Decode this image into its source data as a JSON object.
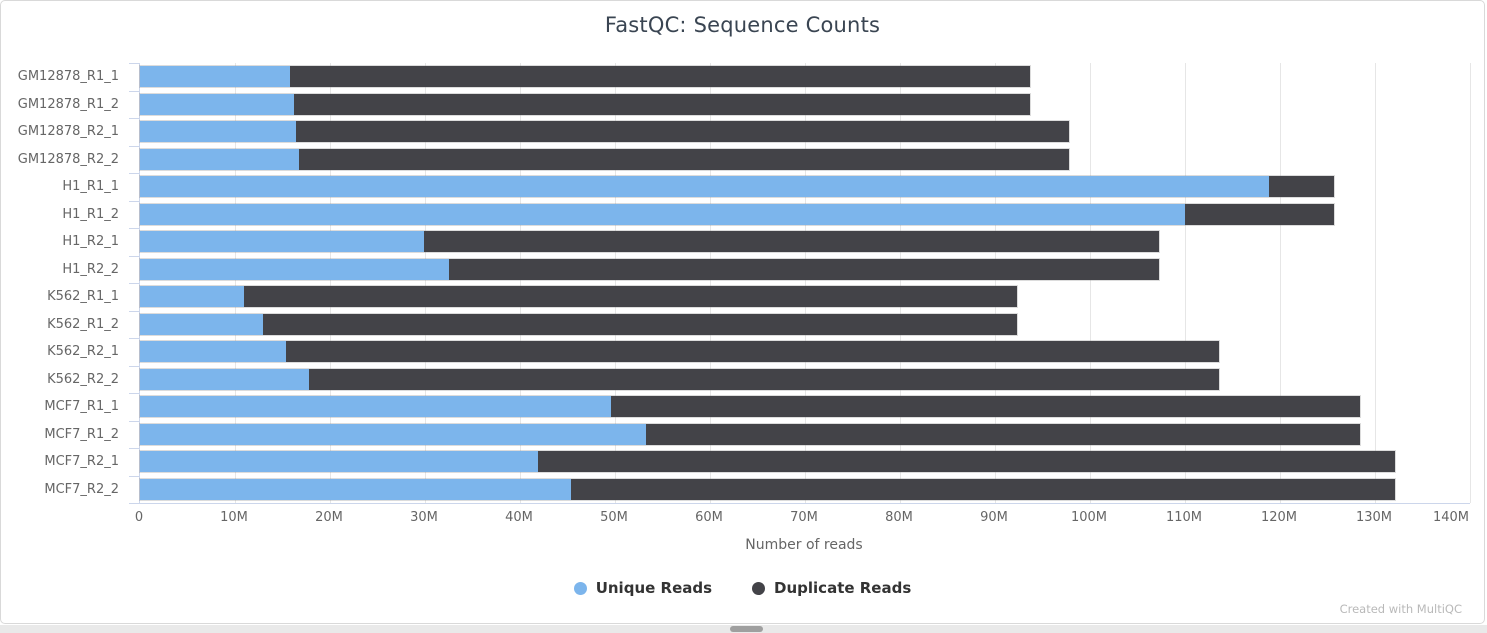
{
  "page": {
    "footer_credit": "Created with MultiQC"
  },
  "chart_data": {
    "type": "bar",
    "orientation": "horizontal",
    "stacked": true,
    "title": "FastQC: Sequence Counts",
    "xlabel": "Number of reads",
    "categories": [
      "GM12878_R1_1",
      "GM12878_R1_2",
      "GM12878_R2_1",
      "GM12878_R2_2",
      "H1_R1_1",
      "H1_R1_2",
      "H1_R2_1",
      "H1_R2_2",
      "K562_R1_1",
      "K562_R1_2",
      "K562_R2_1",
      "K562_R2_2",
      "MCF7_R1_1",
      "MCF7_R1_2",
      "MCF7_R2_1",
      "MCF7_R2_2"
    ],
    "series": [
      {
        "name": "Unique Reads",
        "color": "#7cb5ec",
        "values_millions": [
          15.8,
          16.2,
          16.4,
          16.7,
          118.8,
          110.0,
          29.9,
          32.5,
          10.9,
          12.9,
          15.4,
          17.8,
          49.6,
          53.3,
          41.9,
          45.4
        ]
      },
      {
        "name": "Duplicate Reads",
        "color": "#434348",
        "values_millions": [
          77.9,
          77.5,
          81.4,
          81.1,
          6.9,
          15.7,
          77.4,
          74.8,
          81.4,
          79.4,
          98.2,
          95.8,
          78.8,
          75.1,
          90.2,
          86.7
        ]
      }
    ],
    "xlim_millions": [
      0,
      140
    ],
    "xticks": [
      {
        "label": "0",
        "m": 0
      },
      {
        "label": "10M",
        "m": 10
      },
      {
        "label": "20M",
        "m": 20
      },
      {
        "label": "30M",
        "m": 30
      },
      {
        "label": "40M",
        "m": 40
      },
      {
        "label": "50M",
        "m": 50
      },
      {
        "label": "60M",
        "m": 60
      },
      {
        "label": "70M",
        "m": 70
      },
      {
        "label": "80M",
        "m": 80
      },
      {
        "label": "90M",
        "m": 90
      },
      {
        "label": "100M",
        "m": 100
      },
      {
        "label": "110M",
        "m": 110
      },
      {
        "label": "120M",
        "m": 120
      },
      {
        "label": "130M",
        "m": 130
      },
      {
        "label": "140M",
        "m": 140
      }
    ],
    "grid": true,
    "legend_position": "bottom"
  }
}
